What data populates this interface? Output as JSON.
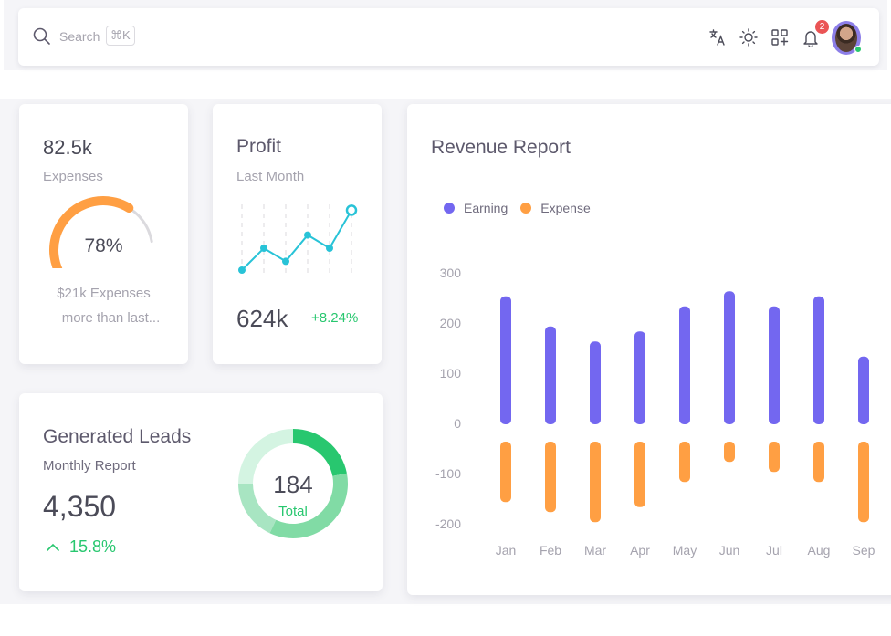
{
  "navbar": {
    "search_placeholder": "Search",
    "search_shortcut": "⌘K",
    "icons": [
      "translate-icon",
      "sun-icon",
      "grid-add-icon",
      "bell-icon"
    ],
    "notification_count": "2",
    "avatar_status": "online",
    "colors": {
      "badge": "#ea5455",
      "online": "#28c76f",
      "avatar_bg": "#8c7ee8"
    }
  },
  "expenses_card": {
    "value": "82.5k",
    "label": "Expenses",
    "gauge_percent": 78,
    "gauge_label": "78%",
    "note_line1": "$21k Expenses",
    "note_line2": "more than last...",
    "colors": {
      "gauge": "#ff9f43",
      "track": "#dbdade"
    }
  },
  "profit_card": {
    "title": "Profit",
    "subtitle": "Last Month",
    "value": "624k",
    "change": "+8.24%",
    "sparkline": [
      10,
      40,
      22,
      58,
      40,
      92
    ],
    "colors": {
      "line": "#28c3d7",
      "change": "#28c76f"
    }
  },
  "leads_card": {
    "title": "Generated Leads",
    "subtitle": "Monthly Report",
    "value": "4,350",
    "change": "15.8%",
    "donut_total": "184",
    "donut_label": "Total",
    "donut_segments": [
      {
        "value": 22,
        "color": "#28c76f"
      },
      {
        "value": 35,
        "color": "#81dba5"
      },
      {
        "value": 18,
        "color": "#a8e5c2"
      },
      {
        "value": 25,
        "color": "#d4f4e2"
      }
    ]
  },
  "revenue_card": {
    "title": "Revenue Report"
  },
  "chart_data": {
    "type": "bar",
    "title": "Revenue Report",
    "categories": [
      "Jan",
      "Feb",
      "Mar",
      "Apr",
      "May",
      "Jun",
      "Jul",
      "Aug",
      "Sep"
    ],
    "series": [
      {
        "name": "Earning",
        "color": "#7367f0",
        "values": [
          255,
          195,
          165,
          185,
          235,
          265,
          235,
          255,
          135
        ]
      },
      {
        "name": "Expense",
        "color": "#ff9f43",
        "values": [
          -155,
          -175,
          -195,
          -165,
          -115,
          -75,
          -95,
          -115,
          -195
        ]
      }
    ],
    "yticks": [
      "300",
      "200",
      "100",
      "0",
      "-100",
      "-200"
    ],
    "ylim": [
      -200,
      300
    ],
    "legend": "top-left",
    "grid": false,
    "xlabel": "",
    "ylabel": ""
  }
}
